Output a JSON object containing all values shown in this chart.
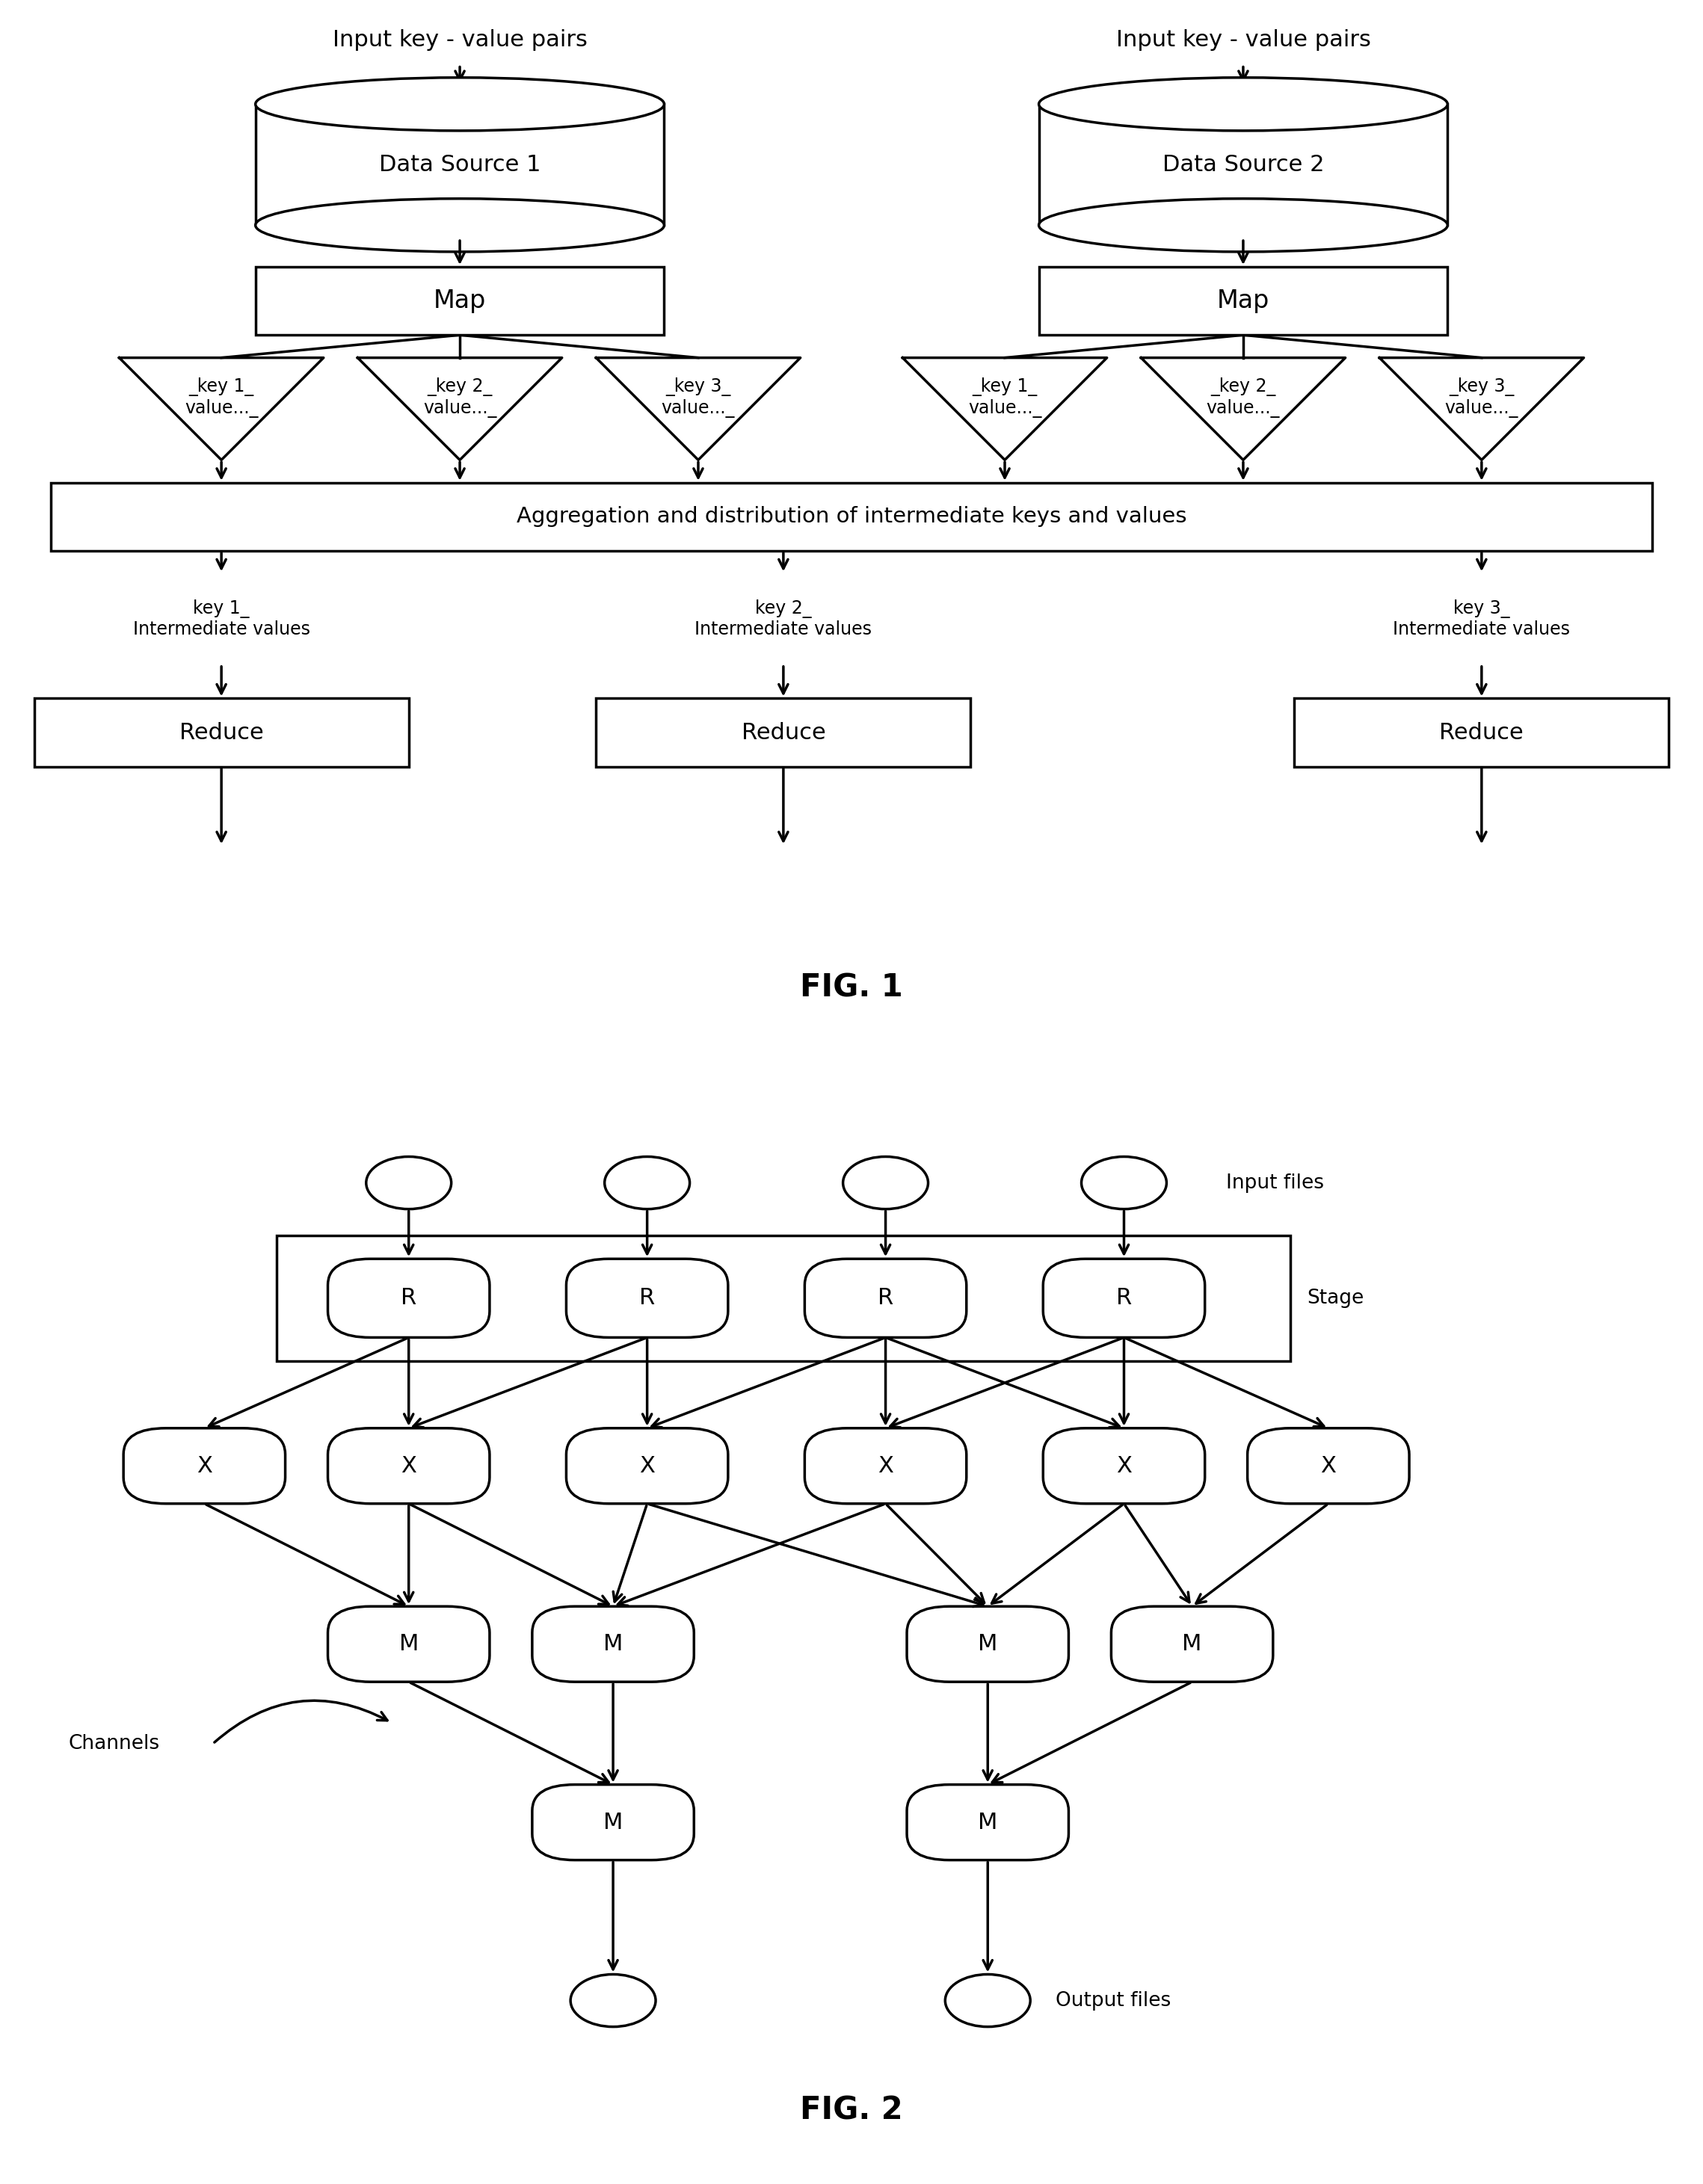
{
  "bg_color": "#ffffff",
  "fig1_title": "FIG. 1",
  "fig2_title": "FIG. 2",
  "input_label": "Input key - value pairs",
  "ds1_label": "Data Source 1",
  "ds2_label": "Data Source 2",
  "map_label": "Map",
  "aggr_label": "Aggregation and distribution of intermediate keys and values",
  "key_labels": [
    "_key 1_\nvalue..._",
    "_key 2_\nvalue..._",
    "_key 3_\nvalue..._"
  ],
  "reduce_key_labels": [
    "key 1_\nIntermediate values",
    "key 2_\nIntermediate values",
    "key 3_\nIntermediate values"
  ],
  "reduce_label": "Reduce",
  "input_files_label": "Input files",
  "output_files_label": "Output files",
  "channels_label": "Channels",
  "stage_label": "Stage"
}
